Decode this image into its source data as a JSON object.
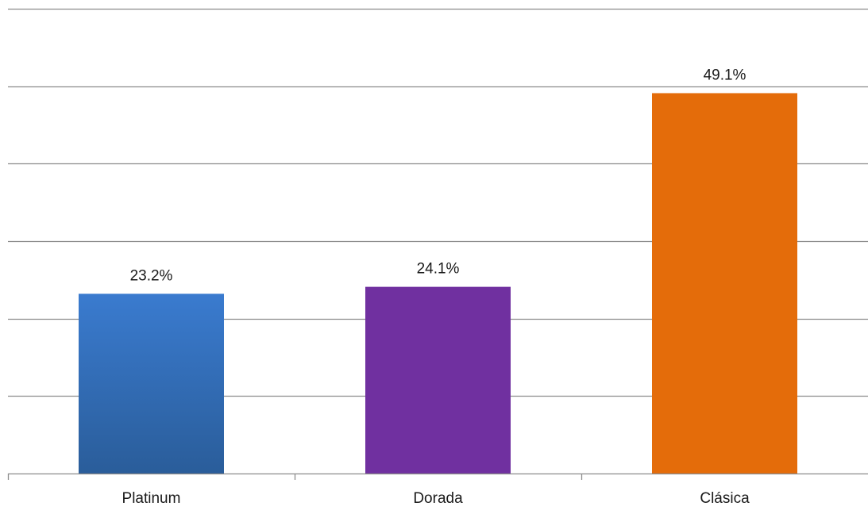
{
  "chart_data": {
    "type": "bar",
    "title": "",
    "xlabel": "",
    "ylabel": "",
    "categories": [
      "Platinum",
      "Dorada",
      "Clásica"
    ],
    "values": [
      23.2,
      24.1,
      49.1
    ],
    "value_labels": [
      "23.2%",
      "24.1%",
      "49.1%"
    ],
    "unit": "%",
    "ylim": [
      0,
      60
    ],
    "gridlines": [
      0,
      10,
      20,
      30,
      40,
      50,
      60
    ],
    "grid": true,
    "legend": "none",
    "bar_colors": [
      "#3a7bcf",
      "#7030a0",
      "#e46c0a"
    ],
    "bar_gradient_bottom": [
      "#2a5d9a",
      null,
      null
    ]
  }
}
